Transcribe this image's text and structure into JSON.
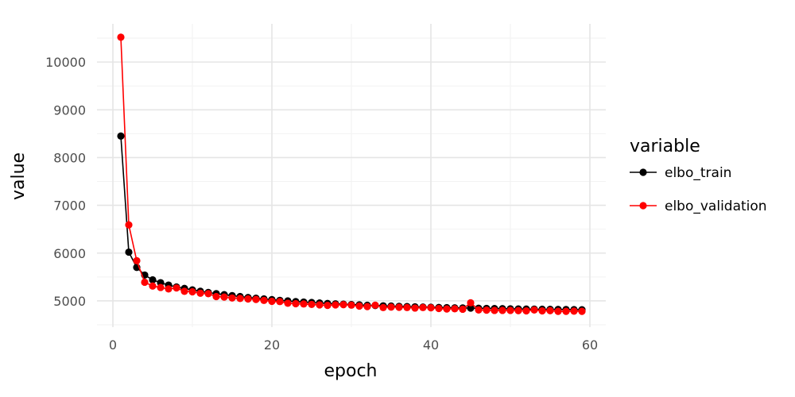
{
  "chart_data": {
    "type": "line",
    "xlabel": "epoch",
    "ylabel": "value",
    "xlim": [
      -2,
      62
    ],
    "ylim": [
      4450,
      10800
    ],
    "x_ticks": [
      0,
      20,
      40,
      60
    ],
    "y_ticks": [
      5000,
      6000,
      7000,
      8000,
      9000,
      10000
    ],
    "grid": true,
    "legend": {
      "title": "variable",
      "position": "right"
    },
    "x": [
      1,
      2,
      3,
      4,
      5,
      6,
      7,
      8,
      9,
      10,
      11,
      12,
      13,
      14,
      15,
      16,
      17,
      18,
      19,
      20,
      21,
      22,
      23,
      24,
      25,
      26,
      27,
      28,
      29,
      30,
      31,
      32,
      33,
      34,
      35,
      36,
      37,
      38,
      39,
      40,
      41,
      42,
      43,
      44,
      45,
      46,
      47,
      48,
      49,
      50,
      51,
      52,
      53,
      54,
      55,
      56,
      57,
      58,
      59
    ],
    "series": [
      {
        "name": "elbo_train",
        "color": "#000000",
        "values": [
          8450,
          6020,
          5700,
          5540,
          5440,
          5380,
          5330,
          5290,
          5260,
          5230,
          5200,
          5175,
          5150,
          5130,
          5110,
          5090,
          5070,
          5055,
          5040,
          5025,
          5010,
          4998,
          4985,
          4975,
          4965,
          4955,
          4945,
          4937,
          4930,
          4922,
          4915,
          4908,
          4902,
          4896,
          4890,
          4885,
          4880,
          4875,
          4870,
          4866,
          4862,
          4858,
          4854,
          4851,
          4848,
          4845,
          4842,
          4839,
          4836,
          4833,
          4830,
          4828,
          4826,
          4824,
          4822,
          4820,
          4818,
          4816,
          4814
        ]
      },
      {
        "name": "elbo_validation",
        "color": "#ff0000",
        "values": [
          10520,
          6590,
          5840,
          5390,
          5310,
          5280,
          5250,
          5270,
          5200,
          5190,
          5160,
          5150,
          5090,
          5080,
          5060,
          5050,
          5040,
          5030,
          5010,
          4990,
          4985,
          4950,
          4940,
          4935,
          4925,
          4915,
          4905,
          4915,
          4920,
          4910,
          4890,
          4880,
          4910,
          4860,
          4870,
          4865,
          4860,
          4850,
          4860,
          4855,
          4840,
          4830,
          4835,
          4825,
          4960,
          4810,
          4805,
          4800,
          4800,
          4800,
          4795,
          4790,
          4810,
          4790,
          4795,
          4780,
          4780,
          4785,
          4780
        ]
      }
    ]
  }
}
